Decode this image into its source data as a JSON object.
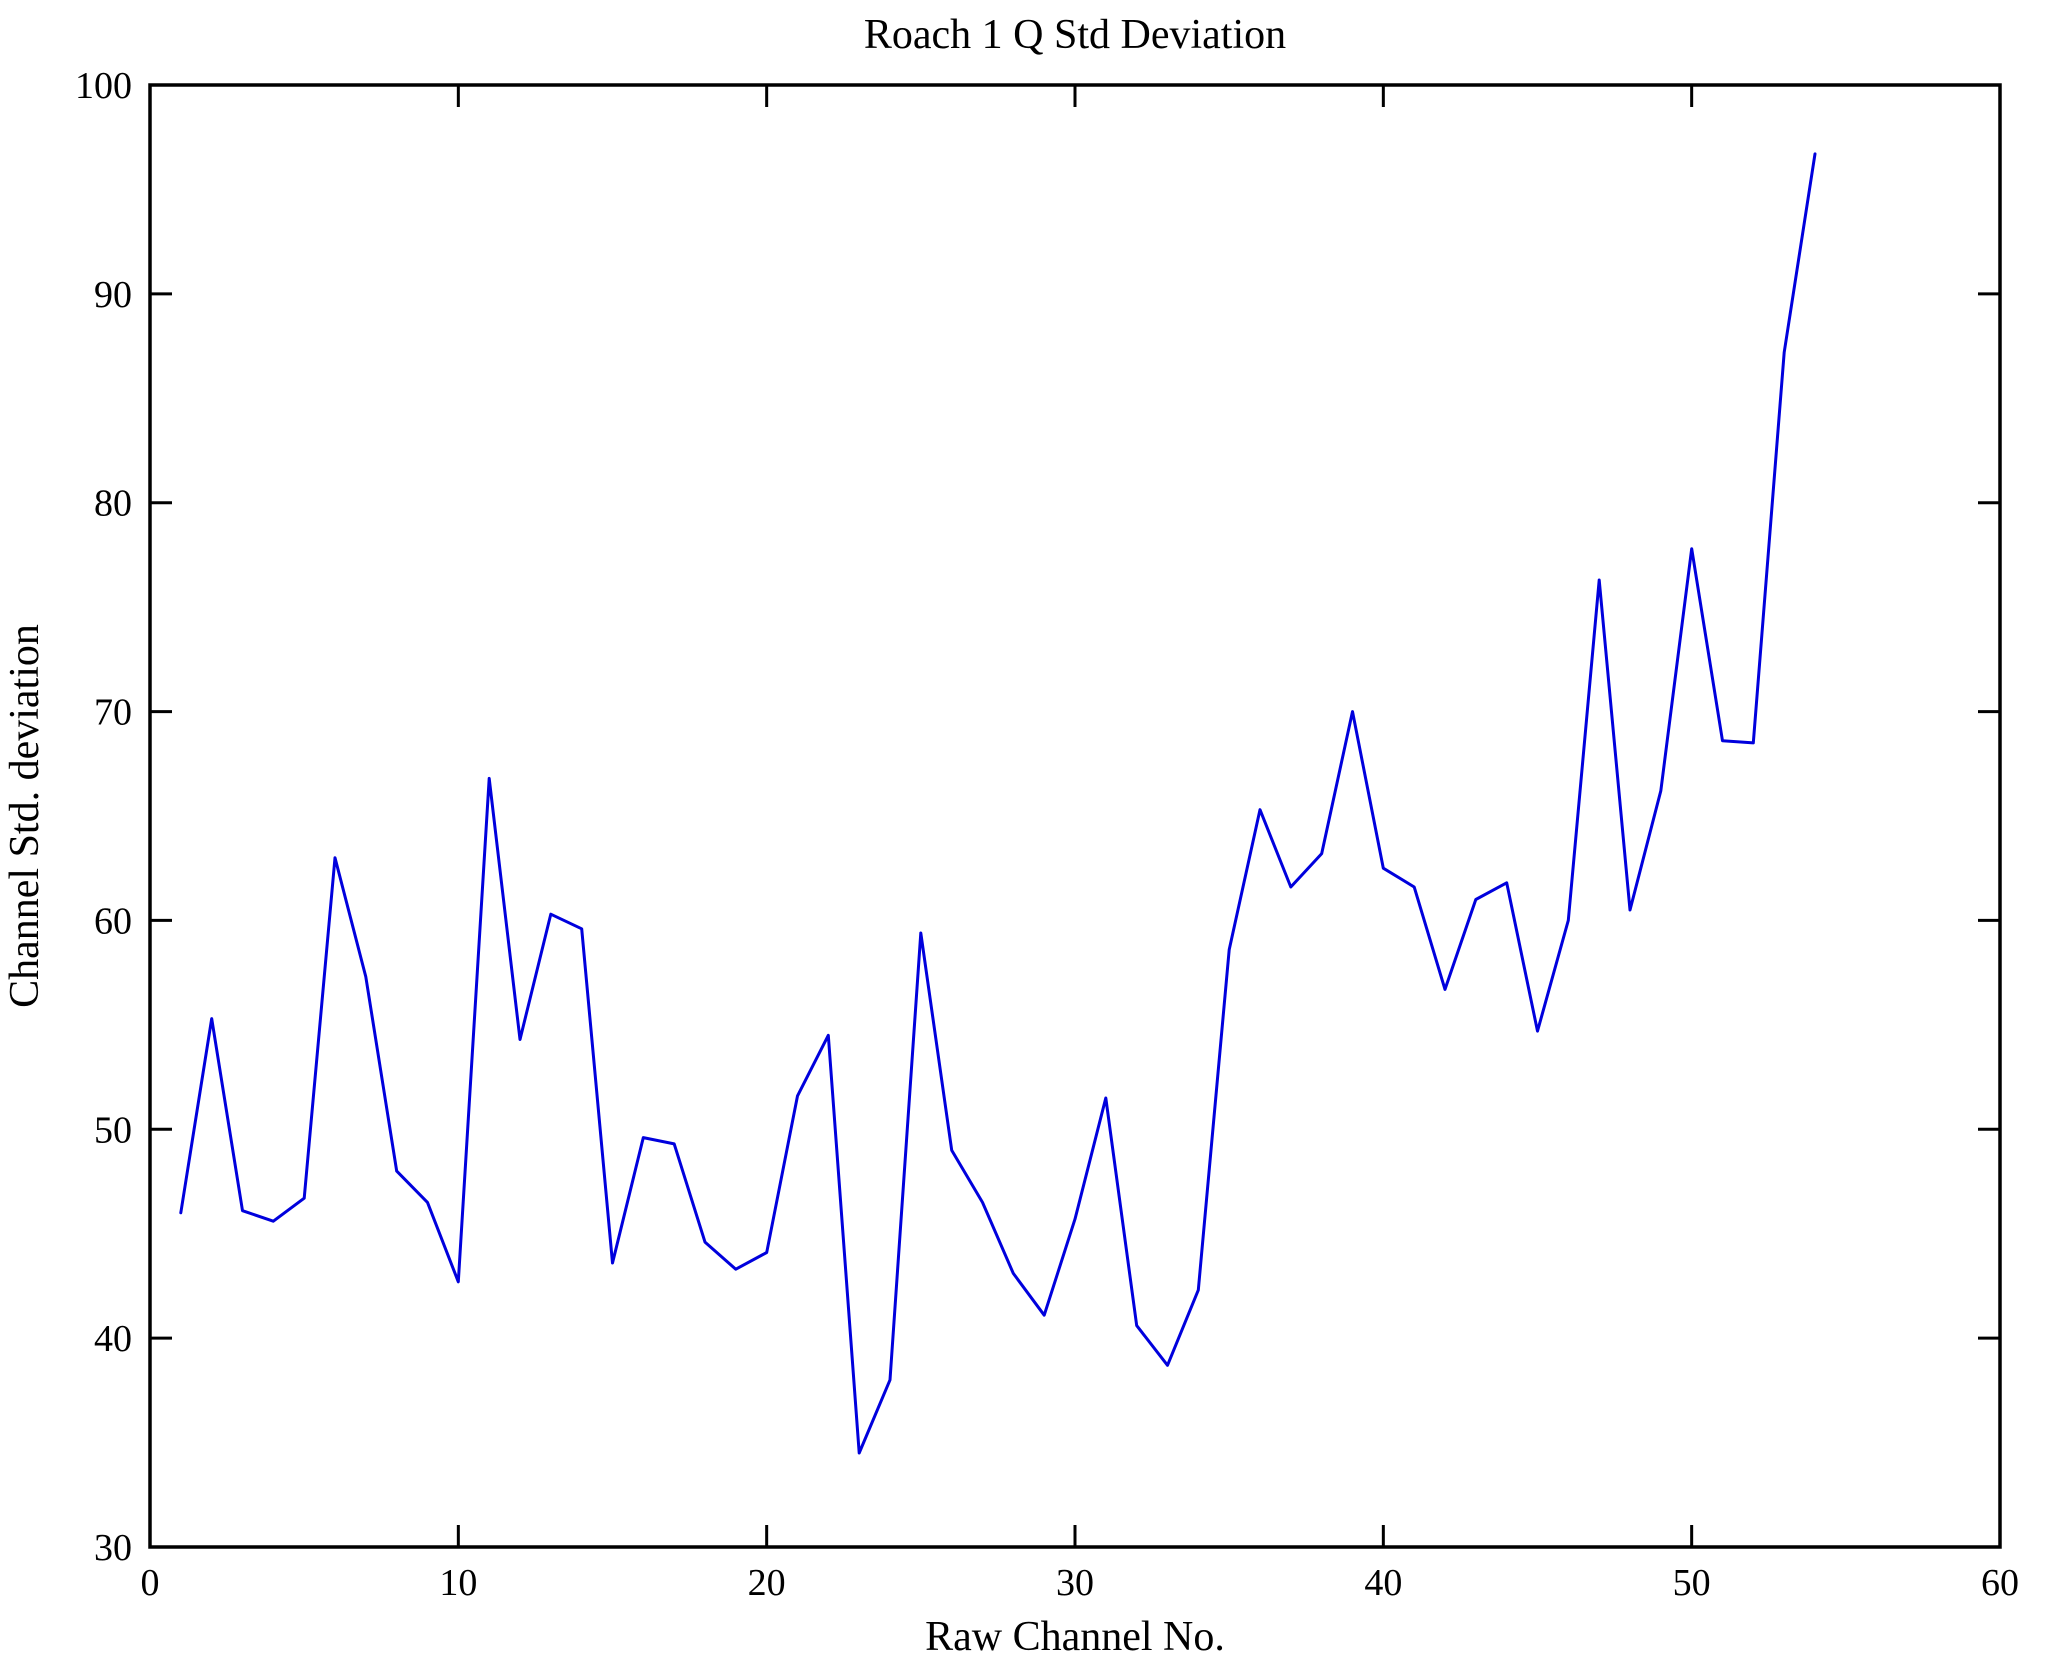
{
  "title": "Roach 1 Q Std Deviation",
  "chart_data": {
    "type": "line",
    "title": "Roach 1 Q Std Deviation",
    "xlabel": "Raw Channel No.",
    "ylabel": "Channel Std. deviation",
    "xlim": [
      0,
      60
    ],
    "ylim": [
      30,
      100
    ],
    "x_ticks": [
      0,
      10,
      20,
      30,
      40,
      50,
      60
    ],
    "y_ticks": [
      30,
      40,
      50,
      60,
      70,
      80,
      90,
      100
    ],
    "grid": false,
    "legend": "none",
    "line_color": "#0000dd",
    "axis_color": "#000000",
    "background_color": "#ffffff",
    "series_name": "Channel Std. deviation",
    "x": [
      1,
      2,
      3,
      4,
      5,
      6,
      7,
      8,
      9,
      10,
      11,
      12,
      13,
      14,
      15,
      16,
      17,
      18,
      19,
      20,
      21,
      22,
      23,
      24,
      25,
      26,
      27,
      28,
      29,
      30,
      31,
      32,
      33,
      34,
      35,
      36,
      37,
      38,
      39,
      40,
      41,
      42,
      43,
      44,
      45,
      46,
      47,
      48,
      49,
      50,
      51,
      52,
      53,
      54
    ],
    "values": [
      46.0,
      55.3,
      46.1,
      45.6,
      46.7,
      63.0,
      57.3,
      48.0,
      46.5,
      42.7,
      66.8,
      54.3,
      60.3,
      59.6,
      43.6,
      49.6,
      49.3,
      44.6,
      43.3,
      44.1,
      51.6,
      54.5,
      34.5,
      38.0,
      59.4,
      49.0,
      46.5,
      43.1,
      41.1,
      45.7,
      51.5,
      40.6,
      38.7,
      42.3,
      58.6,
      65.3,
      61.6,
      63.2,
      70.0,
      62.5,
      61.6,
      56.7,
      61.0,
      61.8,
      54.7,
      60.0,
      76.3,
      60.5,
      66.2,
      77.8,
      68.6,
      68.5,
      87.2,
      96.7
    ]
  }
}
